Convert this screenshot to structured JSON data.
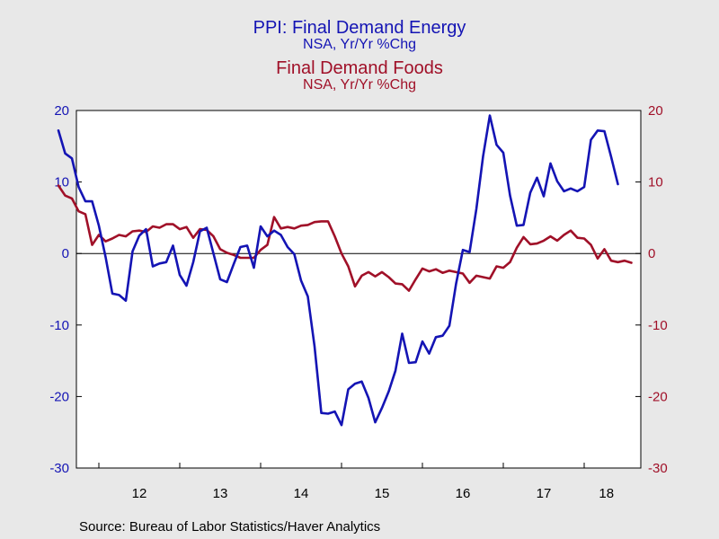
{
  "titles": {
    "energy_title": "PPI: Final Demand Energy",
    "energy_subtitle": "NSA, Yr/Yr %Chg",
    "foods_title": "Final Demand Foods",
    "foods_subtitle": "NSA, Yr/Yr %Chg"
  },
  "source": "Source:  Bureau of Labor Statistics/Haver Analytics",
  "colors": {
    "energy": "#1414b4",
    "foods": "#a01028",
    "plot_bg": "#ffffff",
    "page_bg": "#e8e8e8"
  },
  "chart_data": {
    "type": "line",
    "title": "PPI: Final Demand Energy / Final Demand Foods",
    "x_start": "2011-07",
    "x_frequency": "monthly",
    "x_tick_labels": [
      "12",
      "13",
      "14",
      "15",
      "16",
      "17",
      "18"
    ],
    "ylim": [
      -30,
      20
    ],
    "y_ticks": [
      -30,
      -20,
      -10,
      0,
      10,
      20
    ],
    "y_right_ticks": [
      -30,
      -20,
      -10,
      0,
      10,
      20
    ],
    "zero_line": true,
    "series": [
      {
        "name": "PPI: Final Demand Energy",
        "axis": "left",
        "color": "#1414b4",
        "values": [
          17.2,
          14.0,
          13.3,
          9.3,
          7.3,
          7.3,
          3.9,
          -0.5,
          -5.6,
          -5.8,
          -6.6,
          0.3,
          2.5,
          3.4,
          -1.8,
          -1.4,
          -1.2,
          1.1,
          -3.0,
          -4.5,
          -1.2,
          3.1,
          3.6,
          0.0,
          -3.6,
          -4.0,
          -1.5,
          0.9,
          1.1,
          -2.0,
          3.8,
          2.4,
          3.2,
          2.6,
          0.9,
          -0.1,
          -3.8,
          -6.0,
          -13.0,
          -22.3,
          -22.4,
          -22.1,
          -24.0,
          -19.0,
          -18.2,
          -17.9,
          -20.2,
          -23.6,
          -21.6,
          -19.3,
          -16.4,
          -11.2,
          -15.3,
          -15.2,
          -12.3,
          -14.0,
          -11.7,
          -11.5,
          -10.1,
          -4.2,
          0.5,
          0.2,
          6.2,
          13.6,
          19.3,
          15.2,
          14.1,
          8.1,
          3.9,
          4.0,
          8.5,
          10.6,
          8.0,
          12.6,
          10.1,
          8.7,
          9.1,
          8.7,
          9.3,
          15.9,
          17.2,
          17.1,
          13.5,
          9.7
        ]
      },
      {
        "name": "Final Demand Foods",
        "axis": "right",
        "color": "#a01028",
        "values": [
          9.5,
          8.1,
          7.7,
          5.9,
          5.5,
          1.2,
          2.6,
          1.7,
          2.1,
          2.6,
          2.4,
          3.1,
          3.2,
          3.0,
          3.8,
          3.6,
          4.1,
          4.1,
          3.4,
          3.7,
          2.2,
          3.4,
          3.3,
          2.4,
          0.6,
          0.1,
          -0.2,
          -0.6,
          -0.6,
          -0.6,
          0.5,
          1.2,
          5.1,
          3.5,
          3.7,
          3.5,
          3.9,
          4.0,
          4.4,
          4.5,
          4.5,
          2.4,
          0.0,
          -1.8,
          -4.6,
          -3.1,
          -2.6,
          -3.2,
          -2.6,
          -3.3,
          -4.2,
          -4.3,
          -5.2,
          -3.6,
          -2.1,
          -2.5,
          -2.2,
          -2.7,
          -2.4,
          -2.6,
          -2.8,
          -4.1,
          -3.1,
          -3.3,
          -3.5,
          -1.8,
          -2.0,
          -1.2,
          0.8,
          2.3,
          1.3,
          1.4,
          1.8,
          2.4,
          1.8,
          2.6,
          3.2,
          2.2,
          2.1,
          1.2,
          -0.7,
          0.6,
          -1.0,
          -1.2,
          -1.0,
          -1.3
        ]
      }
    ]
  }
}
